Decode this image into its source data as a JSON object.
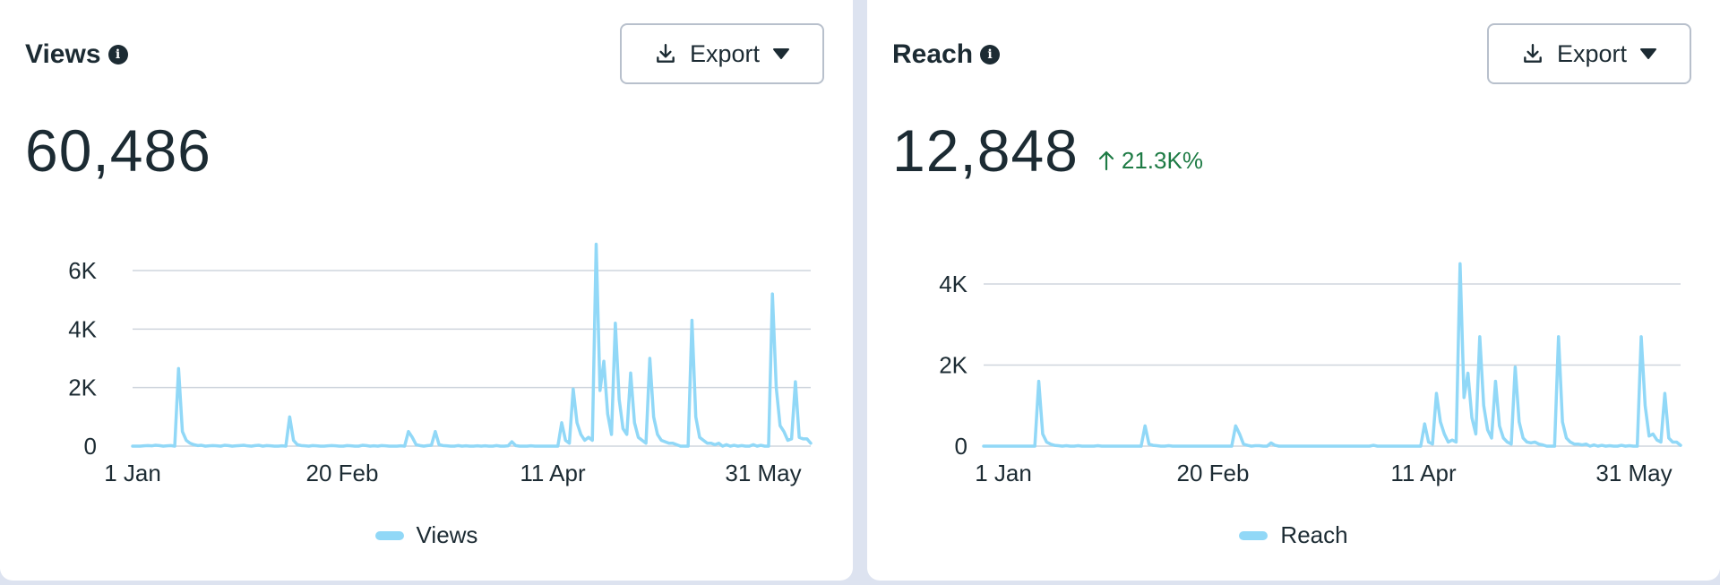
{
  "cards": [
    {
      "title": "Views",
      "export_label": "Export",
      "metric_value": "60,486",
      "metric_change": "",
      "legend_label": "Views"
    },
    {
      "title": "Reach",
      "export_label": "Export",
      "metric_value": "12,848",
      "metric_change": "21.3K%",
      "legend_label": "Reach"
    }
  ],
  "colors": {
    "line": "#91d8f7",
    "grid": "#cfd5dd",
    "positive_change": "#1e7b45",
    "text": "#1c2b33"
  },
  "icons": {
    "info": "info-icon",
    "export": "download-icon",
    "dropdown": "caret-down-icon",
    "change": "arrow-up-icon"
  },
  "chart_data": [
    {
      "type": "line",
      "x_tick_labels": [
        "1 Jan",
        "20 Feb",
        "11 Apr",
        "31 May"
      ],
      "y_ticks": [
        0,
        2000,
        4000,
        6000
      ],
      "y_tick_labels": [
        "0",
        "2K",
        "4K",
        "6K"
      ],
      "ylim": [
        0,
        7000
      ],
      "grid": true,
      "legend_position": "bottom",
      "series": [
        {
          "name": "Views",
          "values": [
            0,
            0,
            0,
            10,
            20,
            10,
            30,
            20,
            0,
            10,
            20,
            0,
            2650,
            500,
            200,
            100,
            50,
            20,
            30,
            0,
            10,
            20,
            10,
            0,
            30,
            20,
            0,
            10,
            20,
            30,
            10,
            0,
            20,
            30,
            0,
            20,
            10,
            0,
            0,
            10,
            0,
            1000,
            200,
            50,
            20,
            10,
            0,
            20,
            10,
            0,
            0,
            10,
            20,
            10,
            0,
            0,
            20,
            10,
            0,
            0,
            30,
            20,
            0,
            10,
            0,
            20,
            10,
            0,
            0,
            0,
            10,
            0,
            500,
            300,
            50,
            20,
            0,
            20,
            30,
            500,
            50,
            20,
            10,
            0,
            0,
            20,
            0,
            10,
            0,
            0,
            10,
            0,
            10,
            0,
            0,
            20,
            0,
            0,
            10,
            150,
            20,
            0,
            0,
            0,
            10,
            0,
            0,
            0,
            0,
            0,
            0,
            0,
            800,
            200,
            100,
            1950,
            800,
            400,
            200,
            300,
            200,
            6900,
            1900,
            2900,
            1100,
            400,
            4200,
            1600,
            600,
            400,
            2500,
            800,
            300,
            200,
            100,
            3000,
            1000,
            400,
            200,
            150,
            100,
            100,
            50,
            0,
            0,
            0,
            4300,
            1000,
            300,
            200,
            100,
            100,
            50,
            100,
            0,
            50,
            0,
            30,
            0,
            20,
            0,
            0,
            50,
            0,
            30,
            0,
            0,
            5200,
            2000,
            700,
            500,
            200,
            250,
            2200,
            300,
            250,
            250,
            100
          ]
        }
      ]
    },
    {
      "type": "line",
      "x_tick_labels": [
        "1 Jan",
        "20 Feb",
        "11 Apr",
        "31 May"
      ],
      "y_ticks": [
        0,
        2000,
        4000
      ],
      "y_tick_labels": [
        "0",
        "2K",
        "4K"
      ],
      "ylim": [
        0,
        5000
      ],
      "grid": true,
      "legend_position": "bottom",
      "series": [
        {
          "name": "Reach",
          "values": [
            0,
            0,
            0,
            0,
            0,
            0,
            0,
            0,
            0,
            0,
            0,
            0,
            0,
            0,
            1600,
            300,
            100,
            50,
            20,
            10,
            0,
            10,
            0,
            0,
            10,
            0,
            0,
            0,
            0,
            10,
            0,
            0,
            0,
            0,
            0,
            0,
            0,
            0,
            0,
            0,
            0,
            500,
            50,
            20,
            10,
            0,
            0,
            10,
            0,
            0,
            0,
            0,
            0,
            0,
            0,
            0,
            0,
            0,
            0,
            0,
            0,
            0,
            0,
            0,
            500,
            300,
            50,
            20,
            0,
            10,
            10,
            0,
            0,
            80,
            20,
            0,
            0,
            0,
            0,
            0,
            0,
            0,
            0,
            0,
            0,
            0,
            0,
            0,
            0,
            0,
            0,
            0,
            0,
            0,
            0,
            0,
            0,
            0,
            0,
            20,
            0,
            0,
            0,
            0,
            0,
            0,
            0,
            0,
            0,
            0,
            0,
            0,
            550,
            100,
            50,
            1300,
            600,
            300,
            100,
            150,
            100,
            4500,
            1200,
            1800,
            700,
            300,
            2700,
            1000,
            400,
            200,
            1600,
            500,
            200,
            100,
            50,
            1950,
            600,
            200,
            100,
            80,
            100,
            50,
            30,
            0,
            0,
            0,
            2700,
            600,
            200,
            100,
            50,
            50,
            30,
            50,
            0,
            30,
            0,
            20,
            0,
            10,
            0,
            0,
            20,
            0,
            10,
            0,
            0,
            2700,
            1000,
            250,
            300,
            150,
            100,
            1300,
            200,
            100,
            100,
            20
          ]
        }
      ]
    }
  ]
}
